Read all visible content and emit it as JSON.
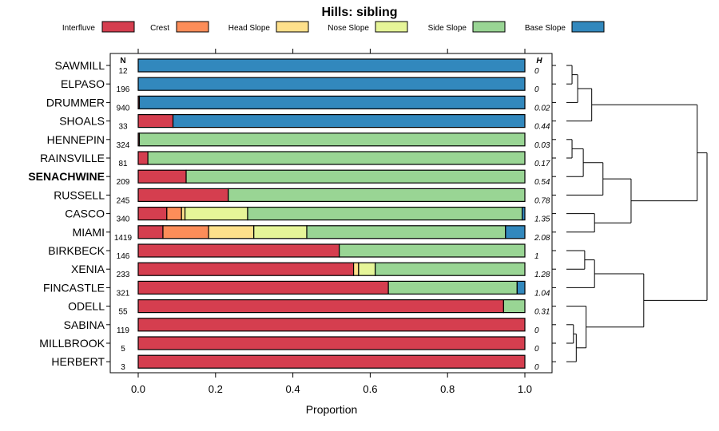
{
  "chart_data": {
    "type": "bar",
    "subtype": "stacked-horizontal-proportion",
    "title": "Hills: sibling",
    "xlabel": "Proportion",
    "xlim": [
      0,
      1
    ],
    "x_ticks": [
      "0.0",
      "0.2",
      "0.4",
      "0.6",
      "0.8",
      "1.0"
    ],
    "n_header": "N",
    "h_header": "H",
    "legend": [
      {
        "name": "Interfluve",
        "color": "#d53e4f"
      },
      {
        "name": "Crest",
        "color": "#fc8d59"
      },
      {
        "name": "Head Slope",
        "color": "#fee08b"
      },
      {
        "name": "Nose Slope",
        "color": "#e6f598"
      },
      {
        "name": "Side Slope",
        "color": "#99d594"
      },
      {
        "name": "Base Slope",
        "color": "#3288bd"
      }
    ],
    "highlight": "SENACHWINE",
    "rows": [
      {
        "name": "SAWMILL",
        "n": "12",
        "h": "0",
        "values": [
          0,
          0,
          0,
          0,
          0,
          1
        ]
      },
      {
        "name": "ELPASO",
        "n": "196",
        "h": "0",
        "values": [
          0,
          0,
          0,
          0,
          0,
          1
        ]
      },
      {
        "name": "DRUMMER",
        "n": "940",
        "h": "0.02",
        "values": [
          0.003,
          0,
          0,
          0,
          0,
          0.997
        ]
      },
      {
        "name": "SHOALS",
        "n": "33",
        "h": "0.44",
        "values": [
          0.09,
          0,
          0,
          0,
          0,
          0.91
        ]
      },
      {
        "name": "HENNEPIN",
        "n": "324",
        "h": "0.03",
        "values": [
          0.003,
          0,
          0,
          0,
          0.997,
          0
        ]
      },
      {
        "name": "RAINSVILLE",
        "n": "81",
        "h": "0.17",
        "values": [
          0.025,
          0,
          0,
          0,
          0.975,
          0
        ]
      },
      {
        "name": "SENACHWINE",
        "n": "209",
        "h": "0.54",
        "values": [
          0.124,
          0,
          0,
          0,
          0.876,
          0
        ]
      },
      {
        "name": "RUSSELL",
        "n": "245",
        "h": "0.78",
        "values": [
          0.233,
          0,
          0,
          0,
          0.767,
          0
        ]
      },
      {
        "name": "CASCO",
        "n": "340",
        "h": "1.35",
        "values": [
          0.074,
          0.038,
          0.009,
          0.162,
          0.71,
          0.007
        ]
      },
      {
        "name": "MIAMI",
        "n": "1419",
        "h": "2.08",
        "values": [
          0.064,
          0.118,
          0.117,
          0.137,
          0.514,
          0.05
        ]
      },
      {
        "name": "BIRKBECK",
        "n": "146",
        "h": "1",
        "values": [
          0.52,
          0,
          0,
          0,
          0.48,
          0
        ]
      },
      {
        "name": "XENIA",
        "n": "233",
        "h": "1.28",
        "values": [
          0.557,
          0,
          0.013,
          0.043,
          0.387,
          0
        ]
      },
      {
        "name": "FINCASTLE",
        "n": "321",
        "h": "1.04",
        "values": [
          0.647,
          0,
          0,
          0,
          0.333,
          0.02
        ]
      },
      {
        "name": "ODELL",
        "n": "55",
        "h": "0.31",
        "values": [
          0.945,
          0,
          0,
          0,
          0.055,
          0
        ]
      },
      {
        "name": "SABINA",
        "n": "119",
        "h": "0",
        "values": [
          1,
          0,
          0,
          0,
          0,
          0
        ]
      },
      {
        "name": "MILLBROOK",
        "n": "5",
        "h": "0",
        "values": [
          1,
          0,
          0,
          0,
          0,
          0
        ]
      },
      {
        "name": "HERBERT",
        "n": "3",
        "h": "0",
        "values": [
          1,
          0,
          0,
          0,
          0,
          0
        ]
      }
    ],
    "dendrogram": [
      {
        "left": 0,
        "right": 1,
        "height": 0.04
      },
      {
        "left": 17,
        "right": 2,
        "height": 0.08
      },
      {
        "left": 18,
        "right": 3,
        "height": 0.18
      },
      {
        "left": 4,
        "right": 5,
        "height": 0.04
      },
      {
        "left": 20,
        "right": 6,
        "height": 0.12
      },
      {
        "left": 21,
        "right": 7,
        "height": 0.26
      },
      {
        "left": 8,
        "right": 9,
        "height": 0.2
      },
      {
        "left": 22,
        "right": 23,
        "height": 0.46
      },
      {
        "left": 14,
        "right": 15,
        "height": 0.05
      },
      {
        "left": 25,
        "right": 16,
        "height": 0.07
      },
      {
        "left": 26,
        "right": 13,
        "height": 0.14
      },
      {
        "left": 10,
        "right": 11,
        "height": 0.13
      },
      {
        "left": 28,
        "right": 12,
        "height": 0.2
      },
      {
        "left": 29,
        "right": 27,
        "height": 0.55
      },
      {
        "left": 19,
        "right": 24,
        "height": 0.93
      },
      {
        "left": 31,
        "right": 30,
        "height": 1.0
      }
    ]
  }
}
